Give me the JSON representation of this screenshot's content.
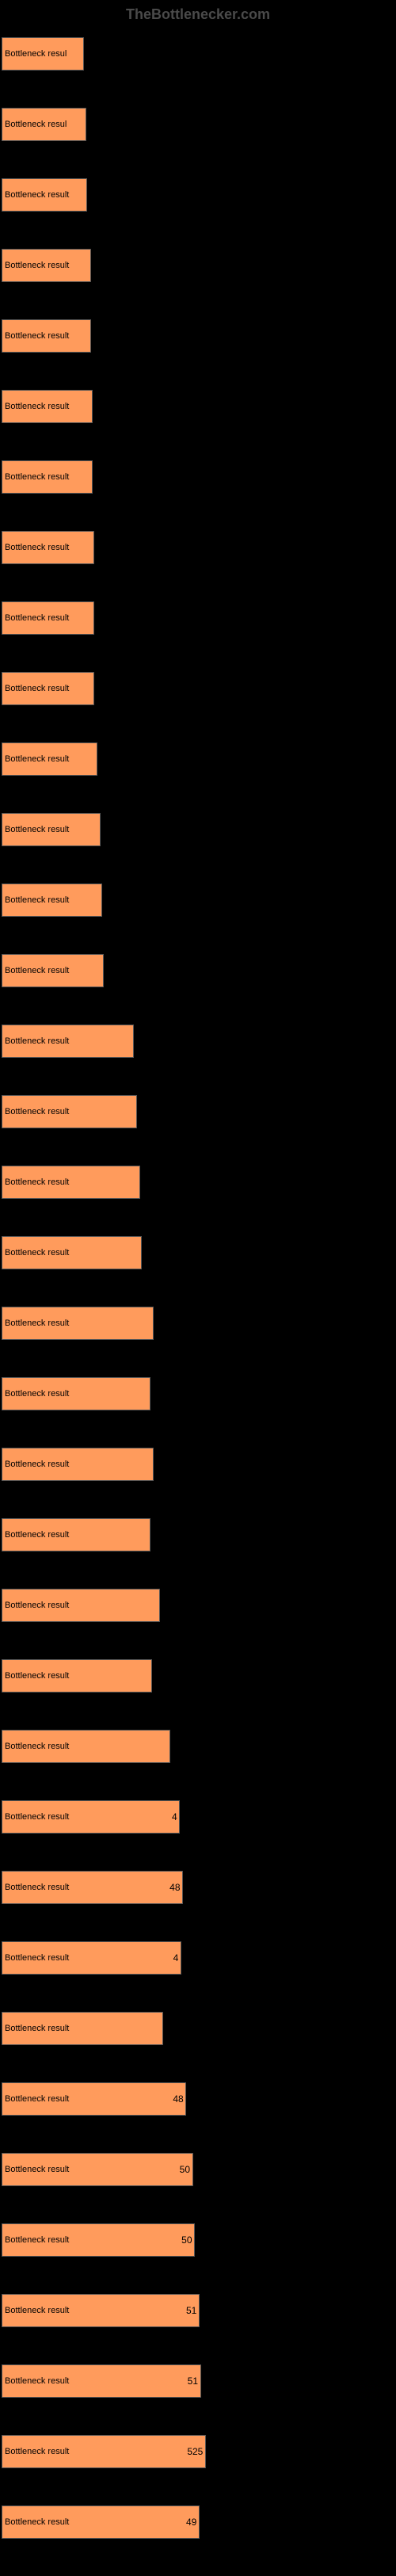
{
  "header": {
    "title": "TheBottlenecker.com"
  },
  "chart": {
    "type": "bar",
    "background_color": "#000000",
    "bar_color": "#ff9b5c",
    "bar_border_color": "#555555",
    "text_color": "#000000",
    "header_color": "#4a4a4a",
    "label_fontsize": 11,
    "max_value": 60,
    "base_label": "Bottleneck result",
    "rows": [
      {
        "value": 12.5,
        "show_value": false,
        "truncate": true
      },
      {
        "value": 12.8,
        "show_value": false,
        "truncate": true
      },
      {
        "value": 13.0,
        "show_value": false,
        "truncate": true
      },
      {
        "value": 13.5,
        "show_value": false,
        "truncate": true
      },
      {
        "value": 13.5,
        "show_value": false,
        "truncate": true
      },
      {
        "value": 13.8,
        "show_value": false,
        "truncate": true
      },
      {
        "value": 13.8,
        "show_value": false,
        "truncate": true
      },
      {
        "value": 14.0,
        "show_value": false,
        "truncate": true
      },
      {
        "value": 14.0,
        "show_value": false,
        "truncate": true
      },
      {
        "value": 14.0,
        "show_value": false,
        "truncate": true
      },
      {
        "value": 14.5,
        "show_value": false,
        "truncate": true
      },
      {
        "value": 15.0,
        "show_value": false,
        "truncate": true
      },
      {
        "value": 15.2,
        "show_value": false,
        "truncate": true
      },
      {
        "value": 15.5,
        "show_value": false,
        "truncate": true
      },
      {
        "value": 20.0,
        "show_value": false,
        "truncate": false
      },
      {
        "value": 20.5,
        "show_value": false,
        "truncate": false
      },
      {
        "value": 21.0,
        "show_value": false,
        "truncate": false
      },
      {
        "value": 21.2,
        "show_value": false,
        "truncate": false
      },
      {
        "value": 23.0,
        "show_value": false,
        "truncate": false
      },
      {
        "value": 22.5,
        "show_value": false,
        "truncate": false
      },
      {
        "value": 23.0,
        "show_value": false,
        "truncate": false
      },
      {
        "value": 22.5,
        "show_value": false,
        "truncate": false
      },
      {
        "value": 24.0,
        "show_value": false,
        "truncate": false
      },
      {
        "value": 22.8,
        "show_value": false,
        "truncate": false
      },
      {
        "value": 25.5,
        "show_value": false,
        "truncate": false
      },
      {
        "value": 27.0,
        "show_value": true,
        "value_label": "4",
        "truncate": false
      },
      {
        "value": 27.5,
        "show_value": true,
        "value_label": "48",
        "truncate": false
      },
      {
        "value": 27.2,
        "show_value": true,
        "value_label": "4",
        "truncate": false
      },
      {
        "value": 24.5,
        "show_value": false,
        "truncate": false
      },
      {
        "value": 28.0,
        "show_value": true,
        "value_label": "48",
        "truncate": false
      },
      {
        "value": 29.0,
        "show_value": true,
        "value_label": "50",
        "truncate": false
      },
      {
        "value": 29.3,
        "show_value": true,
        "value_label": "50",
        "truncate": false
      },
      {
        "value": 30.0,
        "show_value": true,
        "value_label": "51",
        "truncate": false
      },
      {
        "value": 30.2,
        "show_value": true,
        "value_label": "51",
        "truncate": false
      },
      {
        "value": 31.0,
        "show_value": true,
        "value_label": "525",
        "truncate": false
      },
      {
        "value": 30.0,
        "show_value": true,
        "value_label": "49",
        "truncate": false
      }
    ]
  }
}
